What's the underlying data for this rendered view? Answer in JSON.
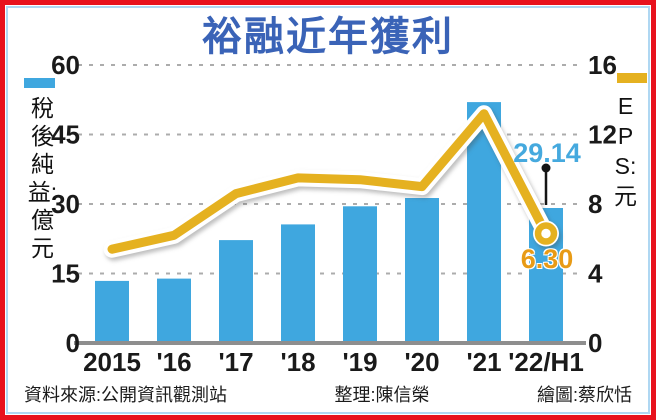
{
  "title": "裕融近年獲利",
  "legend_left": {
    "swatch": "blue-bar-swatch",
    "label": "稅後純益:億元"
  },
  "legend_right": {
    "swatch": "yellow-line-swatch",
    "label": "EPS:元"
  },
  "annotations": {
    "net_profit_latest": "29.14",
    "eps_latest": "6.30"
  },
  "footer": {
    "source": "資料來源:公開資訊觀測站",
    "editor": "整理:陳信榮",
    "illustrator": "繪圖:蔡欣恬"
  },
  "colors": {
    "bar": "#3fa7df",
    "line": "#e5b120",
    "title": "#3a63b7",
    "callout_blue": "#45a9de",
    "callout_orange": "#e89b16",
    "frame_red": "#e8121d",
    "frame_blue": "#afd7f2",
    "grid": "#acacac",
    "baseline": "#8e8e8e"
  },
  "chart_data": {
    "type": "bar",
    "subtype": "bar-with-line-overlay",
    "title": "裕融近年獲利",
    "categories": [
      "2015",
      "'16",
      "'17",
      "'18",
      "'19",
      "'20",
      "'21",
      "'22/H1"
    ],
    "series": [
      {
        "name": "稅後純益:億元",
        "type": "bar",
        "axis": "left",
        "values": [
          13.4,
          13.9,
          22.2,
          25.6,
          29.5,
          31.3,
          52,
          29.14
        ]
      },
      {
        "name": "EPS:元",
        "type": "line",
        "axis": "right",
        "values": [
          5.4,
          6.2,
          8.6,
          9.5,
          9.4,
          9.0,
          13.2,
          6.3
        ]
      }
    ],
    "left_axis": {
      "label": "稅後純益:億元",
      "range": [
        0,
        60
      ],
      "ticks": [
        60,
        45,
        30,
        15,
        0
      ]
    },
    "right_axis": {
      "label": "EPS:元",
      "range": [
        0,
        16
      ],
      "ticks": [
        16,
        12,
        8,
        4,
        0
      ]
    },
    "grid": "dashed-horizontal",
    "legend_position": "axis-sides",
    "data_labels": {
      "last_bar": "29.14",
      "last_line_point": "6.30"
    }
  }
}
